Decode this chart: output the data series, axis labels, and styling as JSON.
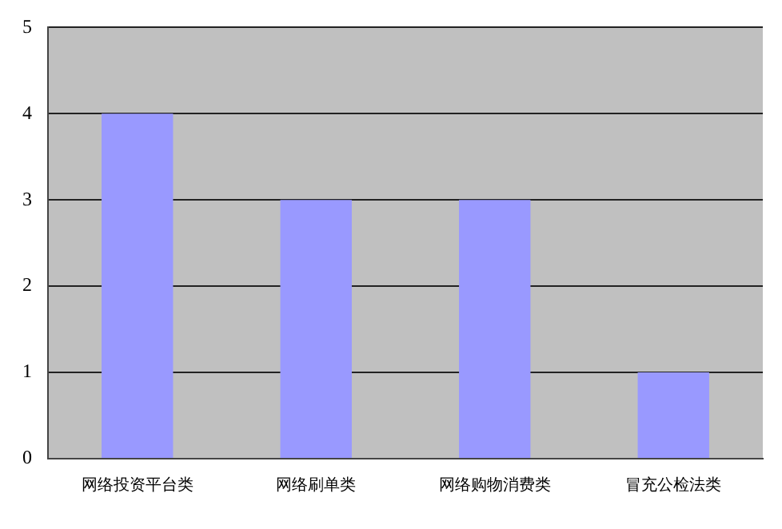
{
  "chart_data": {
    "type": "bar",
    "categories": [
      "网络投资平台类",
      "网络刷单类",
      "网络购物消费类",
      "冒充公检法类"
    ],
    "values": [
      4,
      3,
      3,
      1
    ],
    "color": "#9999ff",
    "ylim": [
      0,
      5
    ],
    "yticks": [
      0,
      1,
      2,
      3,
      4,
      5
    ],
    "grid": "y",
    "legend": false
  }
}
